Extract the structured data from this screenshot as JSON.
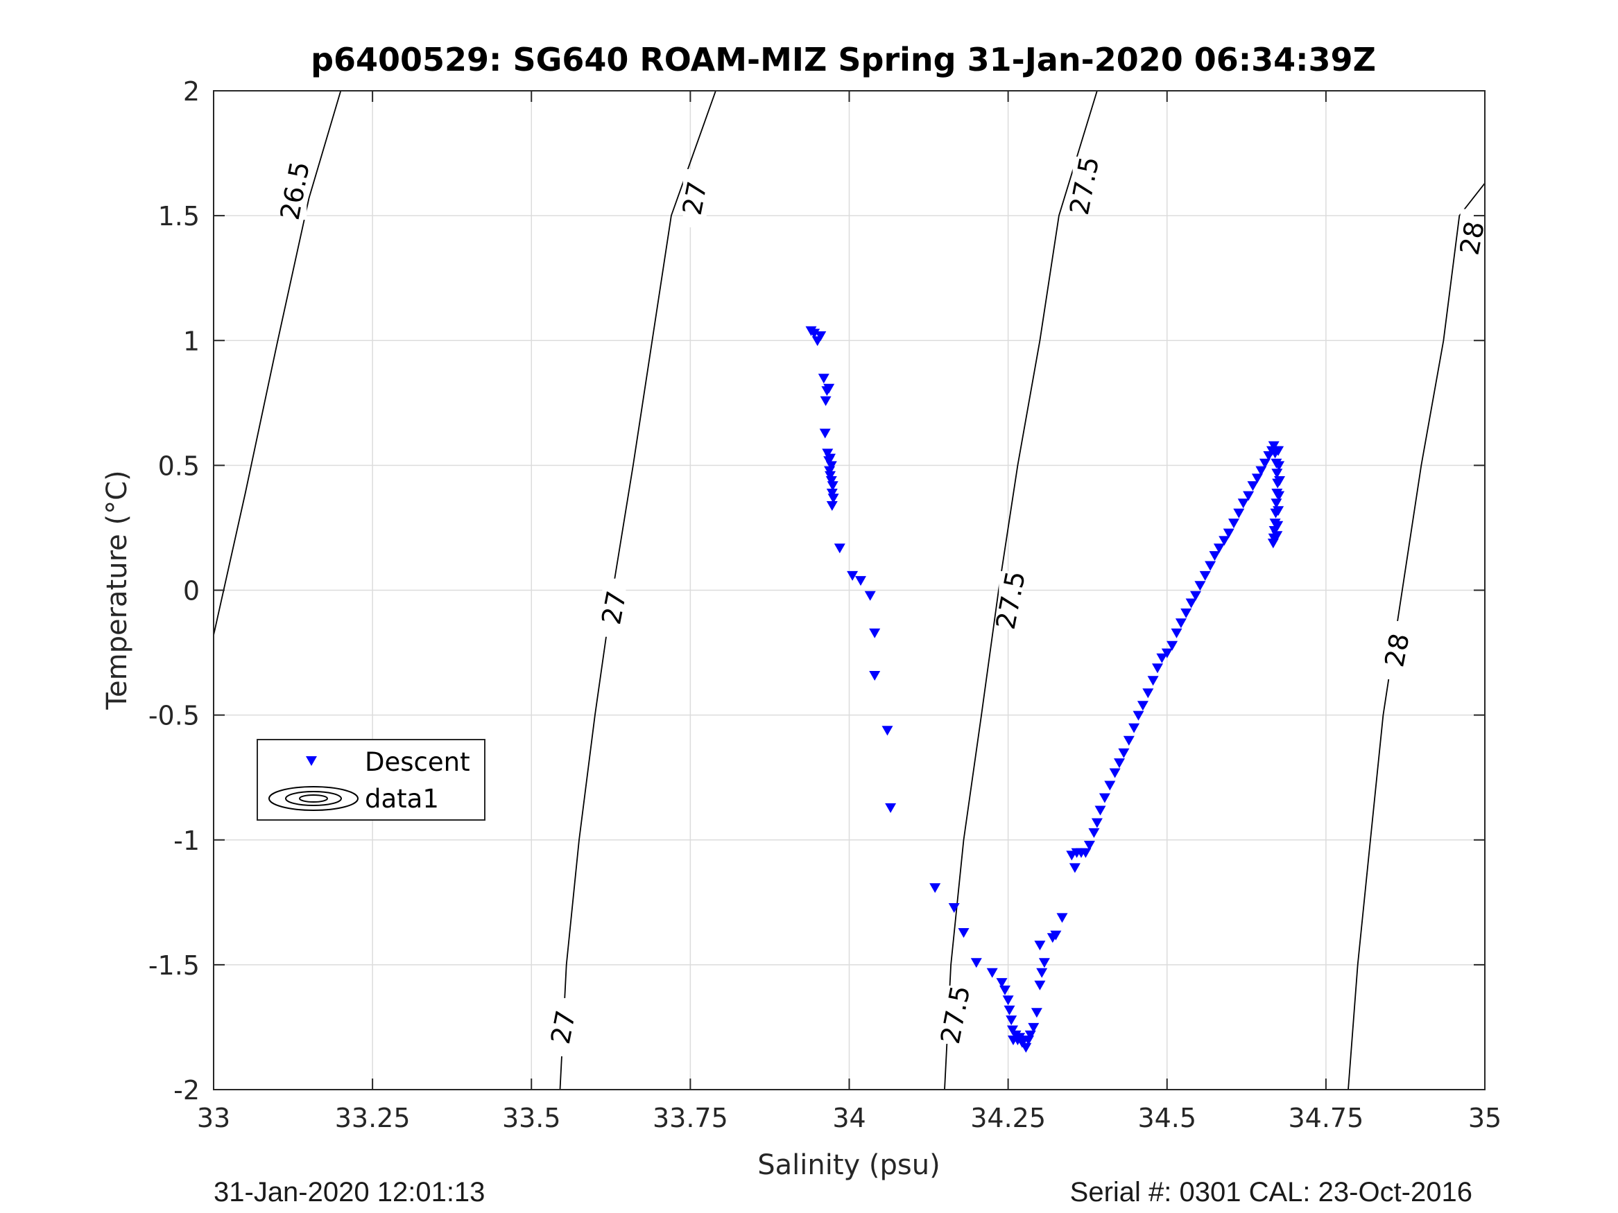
{
  "chart_data": {
    "type": "scatter",
    "title": "p6400529: SG640 ROAM-MIZ Spring 31-Jan-2020 06:34:39Z",
    "xlabel": "Salinity (psu)",
    "ylabel": "Temperature (°C)",
    "xlim": [
      33,
      35
    ],
    "ylim": [
      -2,
      2
    ],
    "x_ticks": [
      33,
      33.25,
      33.5,
      33.75,
      34,
      34.25,
      34.5,
      34.75,
      35
    ],
    "x_tick_labels": [
      "33",
      "33.25",
      "33.5",
      "33.75",
      "34",
      "34.25",
      "34.5",
      "34.75",
      "35"
    ],
    "y_ticks": [
      -2,
      -1.5,
      -1,
      -0.5,
      0,
      0.5,
      1,
      1.5,
      2
    ],
    "y_tick_labels": [
      "-2",
      "-1.5",
      "-1",
      "-0.5",
      "0",
      "0.5",
      "1",
      "1.5",
      "2"
    ],
    "grid": true,
    "legend_placement": "left-middle",
    "legend": [
      {
        "label": "Descent",
        "marker": "triangle-down",
        "color": "#0000ff"
      },
      {
        "label": "data1",
        "marker": "contour",
        "color": "#000000"
      }
    ],
    "series": [
      {
        "name": "Descent",
        "color": "#0000ff",
        "marker": "triangle-down",
        "points": [
          [
            33.94,
            1.04
          ],
          [
            33.945,
            1.03
          ],
          [
            33.95,
            1.0
          ],
          [
            33.955,
            1.02
          ],
          [
            33.96,
            0.85
          ],
          [
            33.965,
            0.8
          ],
          [
            33.968,
            0.81
          ],
          [
            33.963,
            0.76
          ],
          [
            33.962,
            0.63
          ],
          [
            33.966,
            0.55
          ],
          [
            33.968,
            0.52
          ],
          [
            33.97,
            0.53
          ],
          [
            33.972,
            0.5
          ],
          [
            33.969,
            0.48
          ],
          [
            33.97,
            0.46
          ],
          [
            33.972,
            0.44
          ],
          [
            33.974,
            0.42
          ],
          [
            33.973,
            0.39
          ],
          [
            33.975,
            0.37
          ],
          [
            33.973,
            0.34
          ],
          [
            33.985,
            0.17
          ],
          [
            34.005,
            0.06
          ],
          [
            34.018,
            0.04
          ],
          [
            34.033,
            -0.02
          ],
          [
            34.04,
            -0.17
          ],
          [
            34.04,
            -0.34
          ],
          [
            34.06,
            -0.56
          ],
          [
            34.065,
            -0.87
          ],
          [
            34.135,
            -1.19
          ],
          [
            34.165,
            -1.27
          ],
          [
            34.18,
            -1.37
          ],
          [
            34.2,
            -1.49
          ],
          [
            34.225,
            -1.53
          ],
          [
            34.24,
            -1.57
          ],
          [
            34.245,
            -1.6
          ],
          [
            34.25,
            -1.64
          ],
          [
            34.252,
            -1.68
          ],
          [
            34.255,
            -1.72
          ],
          [
            34.257,
            -1.76
          ],
          [
            34.258,
            -1.8
          ],
          [
            34.262,
            -1.78
          ],
          [
            34.265,
            -1.8
          ],
          [
            34.268,
            -1.79
          ],
          [
            34.272,
            -1.81
          ],
          [
            34.275,
            -1.8
          ],
          [
            34.278,
            -1.83
          ],
          [
            34.282,
            -1.8
          ],
          [
            34.285,
            -1.78
          ],
          [
            34.29,
            -1.75
          ],
          [
            34.295,
            -1.69
          ],
          [
            34.3,
            -1.58
          ],
          [
            34.303,
            -1.53
          ],
          [
            34.307,
            -1.49
          ],
          [
            34.3,
            -1.42
          ],
          [
            34.32,
            -1.39
          ],
          [
            34.325,
            -1.38
          ],
          [
            34.335,
            -1.31
          ],
          [
            34.35,
            -1.06
          ],
          [
            34.355,
            -1.11
          ],
          [
            34.358,
            -1.05
          ],
          [
            34.365,
            -1.05
          ],
          [
            34.372,
            -1.05
          ],
          [
            34.378,
            -1.02
          ],
          [
            34.385,
            -0.97
          ],
          [
            34.39,
            -0.93
          ],
          [
            34.395,
            -0.88
          ],
          [
            34.402,
            -0.83
          ],
          [
            34.41,
            -0.78
          ],
          [
            34.418,
            -0.73
          ],
          [
            34.425,
            -0.69
          ],
          [
            34.432,
            -0.65
          ],
          [
            34.44,
            -0.6
          ],
          [
            34.448,
            -0.55
          ],
          [
            34.455,
            -0.5
          ],
          [
            34.462,
            -0.46
          ],
          [
            34.47,
            -0.41
          ],
          [
            34.478,
            -0.36
          ],
          [
            34.485,
            -0.31
          ],
          [
            34.492,
            -0.27
          ],
          [
            34.5,
            -0.25
          ],
          [
            34.508,
            -0.22
          ],
          [
            34.515,
            -0.17
          ],
          [
            34.522,
            -0.13
          ],
          [
            34.53,
            -0.09
          ],
          [
            34.538,
            -0.05
          ],
          [
            34.545,
            -0.02
          ],
          [
            34.552,
            0.02
          ],
          [
            34.56,
            0.06
          ],
          [
            34.568,
            0.1
          ],
          [
            34.575,
            0.14
          ],
          [
            34.582,
            0.17
          ],
          [
            34.59,
            0.2
          ],
          [
            34.597,
            0.23
          ],
          [
            34.605,
            0.27
          ],
          [
            34.613,
            0.31
          ],
          [
            34.62,
            0.35
          ],
          [
            34.628,
            0.38
          ],
          [
            34.635,
            0.42
          ],
          [
            34.642,
            0.45
          ],
          [
            34.648,
            0.48
          ],
          [
            34.654,
            0.51
          ],
          [
            34.66,
            0.54
          ],
          [
            34.665,
            0.56
          ],
          [
            34.668,
            0.58
          ],
          [
            34.67,
            0.55
          ],
          [
            34.672,
            0.51
          ],
          [
            34.673,
            0.47
          ],
          [
            34.674,
            0.43
          ],
          [
            34.673,
            0.39
          ],
          [
            34.672,
            0.35
          ],
          [
            34.671,
            0.31
          ],
          [
            34.67,
            0.27
          ],
          [
            34.669,
            0.24
          ],
          [
            34.668,
            0.21
          ],
          [
            34.667,
            0.19
          ],
          [
            34.675,
            0.56
          ],
          [
            34.676,
            0.5
          ],
          [
            34.677,
            0.44
          ],
          [
            34.676,
            0.38
          ],
          [
            34.675,
            0.32
          ],
          [
            34.674,
            0.26
          ],
          [
            34.673,
            0.22
          ],
          [
            34.672,
            0.56
          ]
        ]
      }
    ],
    "isopycnals": [
      {
        "value": "26.5",
        "points": [
          [
            33.0,
            -0.18
          ],
          [
            33.05,
            0.39
          ],
          [
            33.1,
            0.99
          ],
          [
            33.15,
            1.57
          ],
          [
            33.2,
            2.0
          ]
        ],
        "labels": [
          {
            "text": "26.5",
            "at": [
              33.128,
              1.6
            ]
          }
        ]
      },
      {
        "value": "27",
        "points": [
          [
            33.545,
            -2.0
          ],
          [
            33.555,
            -1.5
          ],
          [
            33.575,
            -1.0
          ],
          [
            33.6,
            -0.5
          ],
          [
            33.628,
            0.0
          ],
          [
            33.66,
            0.5
          ],
          [
            33.69,
            1.0
          ],
          [
            33.72,
            1.5
          ],
          [
            33.79,
            2.0
          ]
        ],
        "labels": [
          {
            "text": "27",
            "at": [
              33.55,
              -1.75
            ]
          },
          {
            "text": "27",
            "at": [
              33.63,
              -0.07
            ]
          },
          {
            "text": "27",
            "at": [
              33.757,
              1.57
            ]
          }
        ]
      },
      {
        "value": "27.5",
        "points": [
          [
            34.15,
            -2.0
          ],
          [
            34.16,
            -1.5
          ],
          [
            34.18,
            -1.0
          ],
          [
            34.208,
            -0.5
          ],
          [
            34.235,
            0.0
          ],
          [
            34.265,
            0.5
          ],
          [
            34.3,
            1.0
          ],
          [
            34.33,
            1.5
          ],
          [
            34.39,
            2.0
          ]
        ],
        "labels": [
          {
            "text": "27.5",
            "at": [
              34.167,
              -1.7
            ]
          },
          {
            "text": "27.5",
            "at": [
              34.254,
              -0.04
            ]
          },
          {
            "text": "27.5",
            "at": [
              34.37,
              1.62
            ]
          }
        ]
      },
      {
        "value": "28",
        "points": [
          [
            34.785,
            -2.0
          ],
          [
            34.8,
            -1.5
          ],
          [
            34.82,
            -1.0
          ],
          [
            34.84,
            -0.5
          ],
          [
            34.87,
            0.0
          ],
          [
            34.9,
            0.5
          ],
          [
            34.935,
            1.0
          ],
          [
            34.96,
            1.5
          ],
          [
            35.0,
            1.63
          ]
        ],
        "labels": [
          {
            "text": "28",
            "at": [
              34.862,
              -0.24
            ]
          },
          {
            "text": "28",
            "at": [
              34.98,
              1.41
            ]
          }
        ]
      }
    ]
  },
  "footer": {
    "timestamp": "31-Jan-2020 12:01:13",
    "serial": "Serial #: 0301  CAL: 23-Oct-2016"
  }
}
